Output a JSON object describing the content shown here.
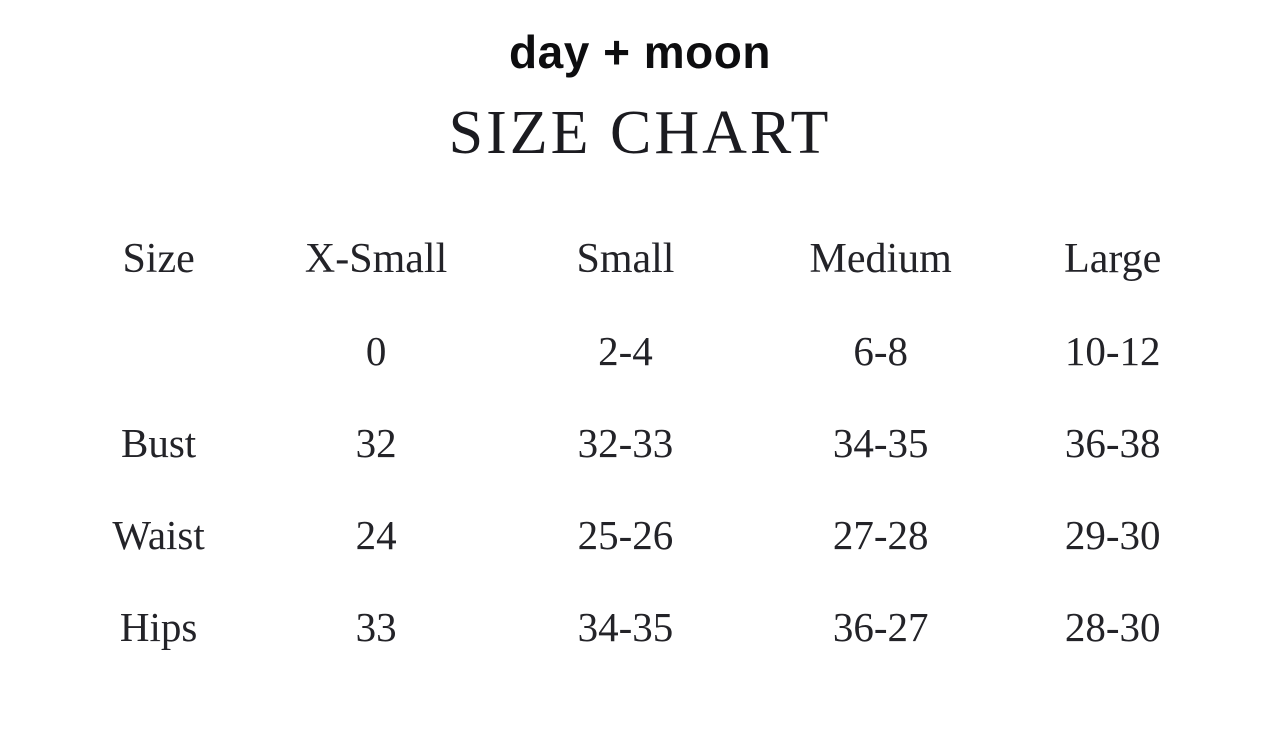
{
  "chart_data": {
    "type": "table",
    "brand": "day + moon",
    "title": "SIZE CHART",
    "columns": [
      "Size",
      "X-Small",
      "Small",
      "Medium",
      "Large"
    ],
    "rows": [
      {
        "label": "",
        "values": [
          "0",
          "2-4",
          "6-8",
          "10-12"
        ]
      },
      {
        "label": "Bust",
        "values": [
          "32",
          "32-33",
          "34-35",
          "36-38"
        ]
      },
      {
        "label": "Waist",
        "values": [
          "24",
          "25-26",
          "27-28",
          "29-30"
        ]
      },
      {
        "label": "Hips",
        "values": [
          "33",
          "34-35",
          "36-27",
          "28-30"
        ]
      }
    ]
  },
  "colors": {
    "background": "#ffffff",
    "text": "#1e1e23"
  }
}
